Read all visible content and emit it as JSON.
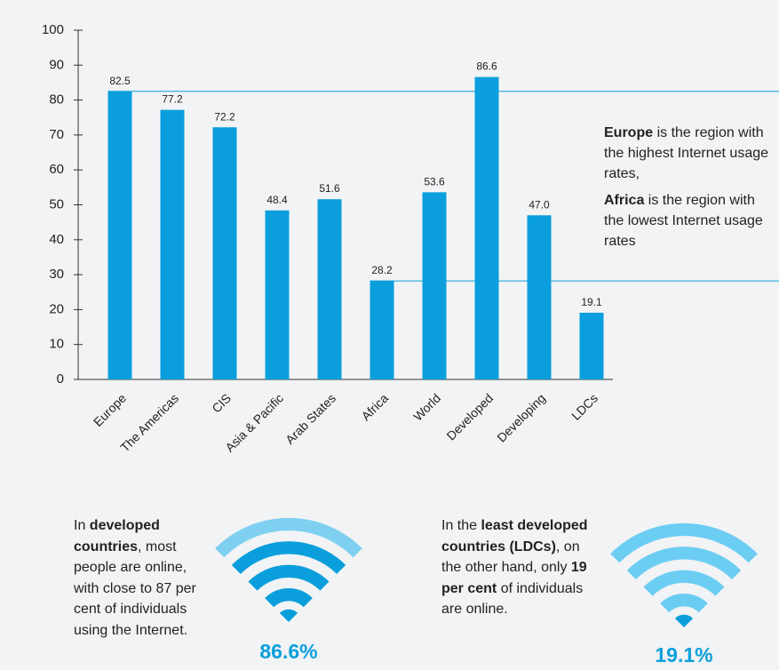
{
  "chart_data": {
    "type": "bar",
    "categories": [
      "Europe",
      "The Americas",
      "CIS",
      "Asia & Pacific",
      "Arab States",
      "Africa",
      "World",
      "Developed",
      "Developing",
      "LDCs"
    ],
    "values": [
      82.5,
      77.2,
      72.2,
      48.4,
      51.6,
      28.2,
      53.6,
      86.6,
      47.0,
      19.1
    ],
    "value_labels": [
      "82.5",
      "77.2",
      "72.2",
      "48.4",
      "51.6",
      "28.2",
      "53.6",
      "86.6",
      "47.0",
      "19.1"
    ],
    "color": "#0a9fdc",
    "ylim": [
      0,
      100
    ],
    "yticks": [
      0,
      10,
      20,
      30,
      40,
      50,
      60,
      70,
      80,
      90,
      100
    ],
    "annotations": [
      [
        {
          "text": "Europe",
          "bold": true
        },
        {
          "text": " is the region with the highest Internet usage rates,"
        }
      ],
      [
        {
          "text": "Africa",
          "bold": true
        },
        {
          "text": " is the region with the lowest Internet usage rates"
        }
      ]
    ]
  },
  "panels": [
    {
      "text": [
        {
          "text": "In "
        },
        {
          "text": "developed countries",
          "bold": true
        },
        {
          "text": ", most people are online, with close to 87 per cent of individuals using the Internet."
        }
      ],
      "figure": "86.6%"
    },
    {
      "text": [
        {
          "text": "In the "
        },
        {
          "text": "least developed countries (LDCs)",
          "bold": true
        },
        {
          "text": ", on the other hand, only "
        },
        {
          "text": "19 per cent",
          "bold": true
        },
        {
          "text": " of individuals are online."
        }
      ],
      "figure": "19.1%"
    }
  ]
}
